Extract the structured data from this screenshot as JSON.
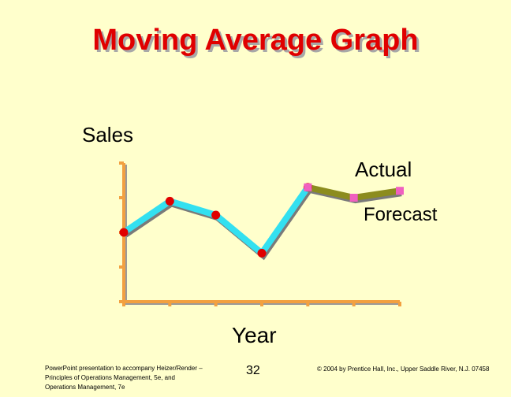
{
  "slide": {
    "title": "Moving Average Graph",
    "page_number": "32",
    "footer_left": "PowerPoint presentation to accompany Heizer/Render – Principles of Operations Management, 5e, and Operations Management, 7e",
    "footer_right": "© 2004 by Prentice Hall, Inc., Upper Saddle River, N.J. 07458"
  },
  "colors": {
    "title": "#E00000",
    "axis": "#F2A040",
    "actual_line": "#33E0F0",
    "forecast_line": "#8C8C1E",
    "actual_marker": "#E00000",
    "forecast_marker": "#F060C0",
    "background": "#FFFFCC"
  },
  "chart_data": {
    "type": "line",
    "xlabel": "Year",
    "ylabel": "Sales",
    "x": [
      1,
      2,
      3,
      4,
      5,
      6,
      7
    ],
    "xlim": [
      1,
      7
    ],
    "ylim": [
      0,
      4
    ],
    "series": [
      {
        "name": "Actual",
        "values": [
          2.0,
          2.9,
          2.5,
          1.4,
          3.3,
          null,
          null
        ]
      },
      {
        "name": "Forecast",
        "values": [
          null,
          null,
          null,
          null,
          3.3,
          3.0,
          3.2
        ]
      }
    ]
  }
}
